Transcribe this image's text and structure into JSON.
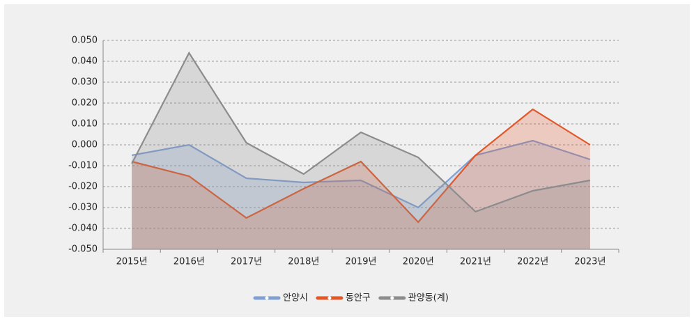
{
  "chart_data": {
    "type": "line",
    "categories": [
      "2015년",
      "2016년",
      "2017년",
      "2018년",
      "2019년",
      "2020년",
      "2021년",
      "2022년",
      "2023년"
    ],
    "series": [
      {
        "name": "안양시",
        "color": "#7f9fd4",
        "values": [
          -0.005,
          0.0,
          -0.016,
          -0.018,
          -0.017,
          -0.03,
          -0.005,
          0.002,
          -0.007
        ]
      },
      {
        "name": "동안구",
        "color": "#e0582a",
        "values": [
          -0.008,
          -0.015,
          -0.035,
          -0.021,
          -0.008,
          -0.037,
          -0.005,
          0.017,
          0.0
        ]
      },
      {
        "name": "관양동(계)",
        "color": "#8c8c8c",
        "values": [
          -0.009,
          0.044,
          0.001,
          -0.014,
          0.006,
          -0.006,
          -0.032,
          -0.022,
          -0.017
        ]
      }
    ],
    "ylim": [
      -0.05,
      0.05
    ],
    "yticks": [
      {
        "value": -0.05,
        "label": "-0.050"
      },
      {
        "value": -0.04,
        "label": "-0.040"
      },
      {
        "value": -0.03,
        "label": "-0.030"
      },
      {
        "value": -0.02,
        "label": "-0.020"
      },
      {
        "value": -0.01,
        "label": "-0.010"
      },
      {
        "value": 0,
        "label": "0.000"
      },
      {
        "value": 0.01,
        "label": "0.010"
      },
      {
        "value": 0.02,
        "label": "0.020"
      },
      {
        "value": 0.03,
        "label": "0.030"
      },
      {
        "value": 0.04,
        "label": "0.040"
      },
      {
        "value": 0.05,
        "label": "0.050"
      }
    ],
    "grid": true,
    "area": true,
    "legend": "bottom"
  }
}
